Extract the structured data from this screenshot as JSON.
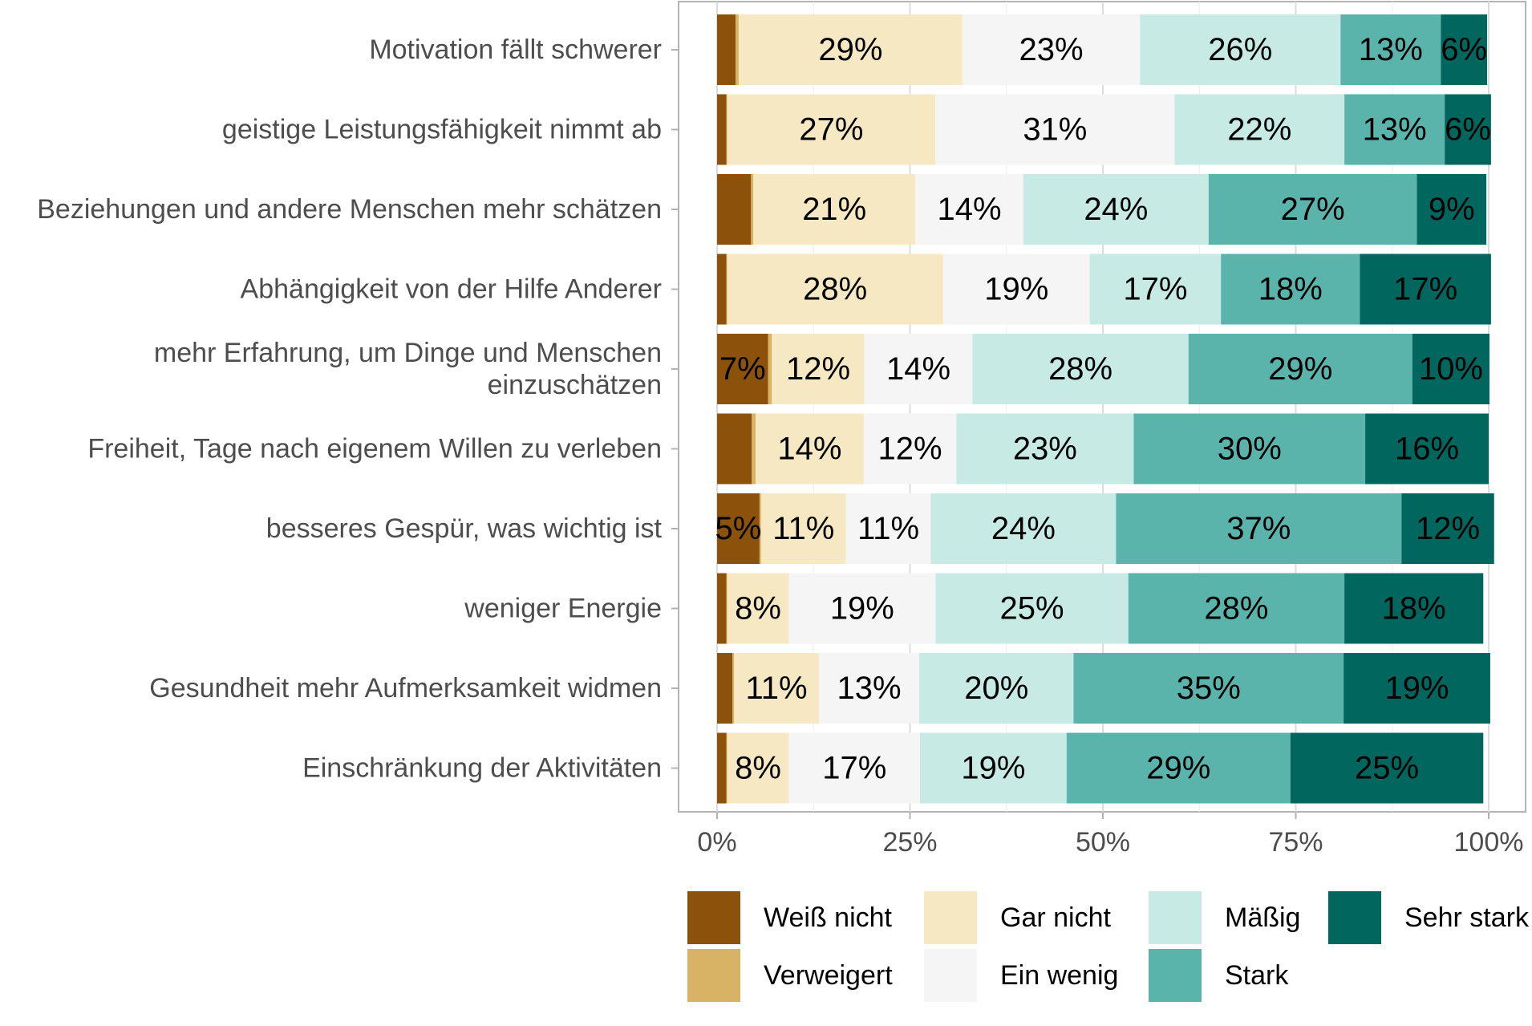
{
  "chart_data": {
    "type": "bar",
    "orientation": "horizontal",
    "stacked": true,
    "title": "",
    "xlabel": "",
    "ylabel": "",
    "xlim": [
      0,
      100
    ],
    "x_ticks": [
      "0%",
      "25%",
      "50%",
      "75%",
      "100%"
    ],
    "x_tick_values": [
      0,
      25,
      50,
      75,
      100
    ],
    "grid": true,
    "legend_position": "bottom",
    "categories": [
      [
        "Motivation fällt schwerer"
      ],
      [
        "geistige Leistungsfähigkeit nimmt ab"
      ],
      [
        "Beziehungen und andere Menschen mehr schätzen"
      ],
      [
        "Abhängigkeit von der Hilfe Anderer"
      ],
      [
        "mehr Erfahrung, um Dinge und Menschen",
        "einzuschätzen"
      ],
      [
        "Freiheit, Tage nach eigenem Willen zu verleben"
      ],
      [
        "besseres Gespür, was wichtig ist"
      ],
      [
        "weniger Energie"
      ],
      [
        "Gesundheit mehr Aufmerksamkeit widmen"
      ],
      [
        "Einschränkung der Aktivitäten"
      ]
    ],
    "series": [
      {
        "name": "Weiß nicht",
        "color": "#8c510a",
        "values": [
          2.4,
          1.2,
          4.4,
          1.2,
          6.6,
          4.5,
          5.5,
          1.2,
          2.0,
          1.2
        ],
        "labels": [
          "",
          "",
          "",
          "",
          "7%",
          "",
          "5%",
          "",
          "",
          ""
        ]
      },
      {
        "name": "Verweigert",
        "color": "#d8b365",
        "values": [
          0.4,
          0.1,
          0.3,
          0.1,
          0.5,
          0.5,
          0.2,
          0.1,
          0.2,
          0.1
        ],
        "labels": [
          "",
          "",
          "",
          "",
          "",
          "",
          "",
          "",
          "",
          ""
        ]
      },
      {
        "name": "Gar nicht",
        "color": "#f6e8c3",
        "values": [
          29,
          27,
          21,
          28,
          12,
          14,
          11,
          8,
          11,
          8
        ],
        "labels": [
          "29%",
          "27%",
          "21%",
          "28%",
          "12%",
          "14%",
          "11%",
          "8%",
          "11%",
          "8%"
        ]
      },
      {
        "name": "Ein wenig",
        "color": "#f5f5f5",
        "values": [
          23,
          31,
          14,
          19,
          14,
          12,
          11,
          19,
          13,
          17
        ],
        "labels": [
          "23%",
          "31%",
          "14%",
          "19%",
          "14%",
          "12%",
          "11%",
          "19%",
          "13%",
          "17%"
        ]
      },
      {
        "name": "Mäßig",
        "color": "#c7eae5",
        "values": [
          26,
          22,
          24,
          17,
          28,
          23,
          24,
          25,
          20,
          19
        ],
        "labels": [
          "26%",
          "22%",
          "24%",
          "17%",
          "28%",
          "23%",
          "24%",
          "25%",
          "20%",
          "19%"
        ]
      },
      {
        "name": "Stark",
        "color": "#5ab4ac",
        "values": [
          13,
          13,
          27,
          18,
          29,
          30,
          37,
          28,
          35,
          29
        ],
        "labels": [
          "13%",
          "13%",
          "27%",
          "18%",
          "29%",
          "30%",
          "37%",
          "28%",
          "35%",
          "29%"
        ]
      },
      {
        "name": "Sehr stark",
        "color": "#01665e",
        "values": [
          6,
          6,
          9,
          17,
          10,
          16,
          12,
          18,
          19,
          25
        ],
        "labels": [
          "6%",
          "6%",
          "9%",
          "17%",
          "10%",
          "16%",
          "12%",
          "18%",
          "19%",
          "25%"
        ]
      }
    ],
    "legend": {
      "columns": [
        [
          "Weiß nicht",
          "Verweigert"
        ],
        [
          "Gar nicht",
          "Ein wenig"
        ],
        [
          "Mäßig",
          "Stark"
        ],
        [
          "Sehr stark"
        ]
      ]
    }
  }
}
